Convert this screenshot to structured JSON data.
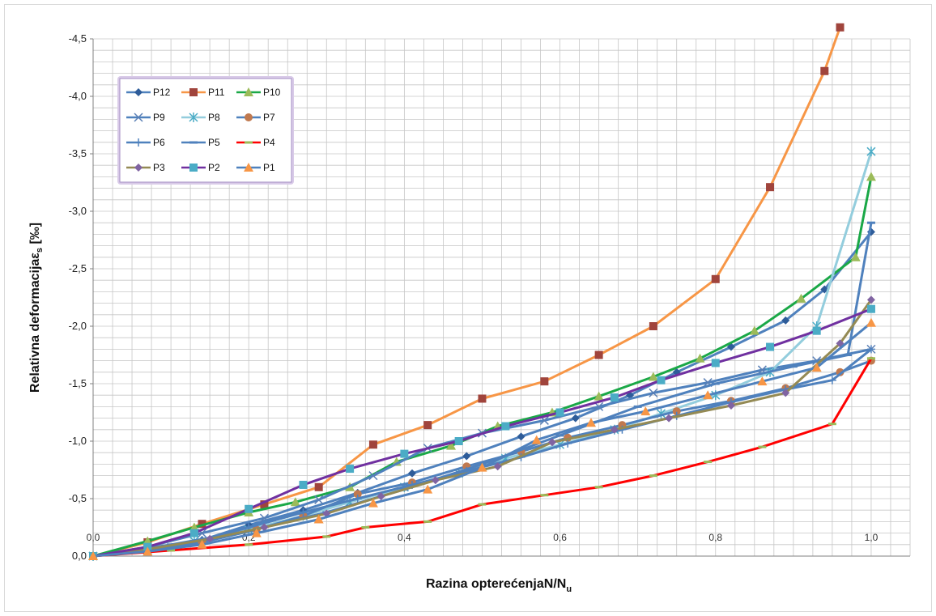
{
  "chart_data": {
    "type": "line",
    "xlabel": "Razina opterećenjaN/N",
    "xlabel_sub": "u",
    "ylabel": "Relativna deformacija",
    "ylabel_symbol": "ε",
    "ylabel_sub": "s",
    "ylabel_unit": " [‰]",
    "xlim": [
      0,
      1.05
    ],
    "ylim": [
      0,
      -4.5
    ],
    "x_ticks": [
      "0,0",
      "0,2",
      "0,4",
      "0,6",
      "0,8",
      "1,0"
    ],
    "y_ticks": [
      "0,0",
      "-0,5",
      "-1,0",
      "-1,5",
      "-2,0",
      "-2,5",
      "-3,0",
      "-3,5",
      "-4,0",
      "-4,5"
    ],
    "grid": true,
    "legend_position": "top-left",
    "series": [
      {
        "name": "P12",
        "color": "#4f81bd",
        "marker": "diamond",
        "marker_color": "#2e5c99",
        "x": [
          0,
          0.07,
          0.14,
          0.2,
          0.27,
          0.34,
          0.41,
          0.48,
          0.55,
          0.62,
          0.69,
          0.75,
          0.82,
          0.89,
          0.94,
          1.0
        ],
        "y": [
          0,
          -0.06,
          -0.14,
          -0.27,
          -0.4,
          -0.55,
          -0.72,
          -0.87,
          -1.04,
          -1.2,
          -1.4,
          -1.6,
          -1.82,
          -2.05,
          -2.32,
          -2.82
        ]
      },
      {
        "name": "P11",
        "color": "#f79646",
        "marker": "square",
        "marker_color": "#a0443c",
        "x": [
          0,
          0.07,
          0.14,
          0.22,
          0.29,
          0.36,
          0.43,
          0.5,
          0.58,
          0.65,
          0.72,
          0.8,
          0.87,
          0.94,
          0.96
        ],
        "y": [
          0,
          -0.12,
          -0.28,
          -0.45,
          -0.6,
          -0.97,
          -1.14,
          -1.37,
          -1.52,
          -1.75,
          -2.0,
          -2.41,
          -3.21,
          -4.22,
          -4.6
        ]
      },
      {
        "name": "P10",
        "color": "#1aa847",
        "marker": "triangle",
        "marker_color": "#9bbb59",
        "x": [
          0,
          0.07,
          0.13,
          0.2,
          0.26,
          0.33,
          0.39,
          0.46,
          0.52,
          0.59,
          0.65,
          0.72,
          0.78,
          0.85,
          0.91,
          0.98,
          1.0
        ],
        "y": [
          0,
          -0.13,
          -0.25,
          -0.38,
          -0.47,
          -0.6,
          -0.82,
          -0.96,
          -1.13,
          -1.25,
          -1.39,
          -1.56,
          -1.72,
          -1.96,
          -2.24,
          -2.6,
          -3.3
        ]
      },
      {
        "name": "P9",
        "color": "#4f81bd",
        "marker": "x",
        "marker_color": "#5a7fb5",
        "x": [
          0,
          0.07,
          0.14,
          0.22,
          0.29,
          0.36,
          0.43,
          0.5,
          0.58,
          0.65,
          0.72,
          0.79,
          0.86,
          0.93,
          1.0
        ],
        "y": [
          0,
          -0.08,
          -0.2,
          -0.33,
          -0.49,
          -0.7,
          -0.94,
          -1.07,
          -1.18,
          -1.3,
          -1.42,
          -1.51,
          -1.62,
          -1.7,
          -1.8
        ]
      },
      {
        "name": "P8",
        "color": "#93cddd",
        "marker": "star",
        "marker_color": "#4bacc6",
        "x": [
          0,
          0.07,
          0.13,
          0.2,
          0.27,
          0.33,
          0.4,
          0.47,
          0.53,
          0.6,
          0.67,
          0.73,
          0.8,
          0.87,
          0.93,
          1.0
        ],
        "y": [
          0,
          -0.05,
          -0.13,
          -0.23,
          -0.35,
          -0.47,
          -0.6,
          -0.72,
          -0.85,
          -0.97,
          -1.1,
          -1.24,
          -1.4,
          -1.6,
          -2.0,
          -3.52
        ]
      },
      {
        "name": "P7",
        "color": "#4f81bd",
        "marker": "circle",
        "marker_color": "#c0794f",
        "x": [
          0,
          0.07,
          0.14,
          0.21,
          0.27,
          0.34,
          0.41,
          0.48,
          0.55,
          0.61,
          0.68,
          0.75,
          0.82,
          0.89,
          0.96,
          1.0
        ],
        "y": [
          0,
          -0.05,
          -0.12,
          -0.23,
          -0.35,
          -0.54,
          -0.64,
          -0.78,
          -0.91,
          -1.03,
          -1.14,
          -1.26,
          -1.35,
          -1.46,
          -1.6,
          -1.7
        ]
      },
      {
        "name": "P6",
        "color": "#4f81bd",
        "marker": "plus",
        "marker_color": "#4f81bd",
        "x": [
          0,
          0.07,
          0.14,
          0.2,
          0.27,
          0.34,
          0.41,
          0.48,
          0.55,
          0.61,
          0.68,
          0.75,
          0.82,
          0.89,
          0.95,
          1.0
        ],
        "y": [
          0,
          -0.06,
          -0.14,
          -0.25,
          -0.38,
          -0.5,
          -0.62,
          -0.74,
          -0.86,
          -0.98,
          -1.1,
          -1.22,
          -1.34,
          -1.45,
          -1.53,
          -1.8
        ]
      },
      {
        "name": "P5",
        "color": "#4f81bd",
        "marker": "dash",
        "marker_color": "#4f81bd",
        "x": [
          0,
          0.1,
          0.2,
          0.3,
          0.4,
          0.5,
          0.6,
          0.7,
          0.8,
          0.9,
          0.97,
          1.0
        ],
        "y": [
          0,
          -0.1,
          -0.22,
          -0.38,
          -0.58,
          -0.8,
          -1.05,
          -1.3,
          -1.5,
          -1.65,
          -1.75,
          -2.9
        ]
      },
      {
        "name": "P4",
        "color": "#ff0000",
        "marker": "dash",
        "marker_color": "#9bbb59",
        "x": [
          0,
          0.1,
          0.2,
          0.3,
          0.35,
          0.43,
          0.5,
          0.58,
          0.65,
          0.72,
          0.79,
          0.86,
          0.95,
          1.0
        ],
        "y": [
          0,
          -0.05,
          -0.1,
          -0.17,
          -0.25,
          -0.3,
          -0.45,
          -0.53,
          -0.6,
          -0.7,
          -0.82,
          -0.95,
          -1.15,
          -1.72
        ]
      },
      {
        "name": "P3",
        "color": "#948a54",
        "marker": "diamond",
        "marker_color": "#8064a2",
        "x": [
          0,
          0.07,
          0.15,
          0.22,
          0.3,
          0.37,
          0.44,
          0.52,
          0.59,
          0.67,
          0.74,
          0.82,
          0.89,
          0.96,
          1.0
        ],
        "y": [
          0,
          -0.06,
          -0.15,
          -0.25,
          -0.37,
          -0.52,
          -0.66,
          -0.78,
          -0.99,
          -1.1,
          -1.2,
          -1.31,
          -1.42,
          -1.85,
          -2.23
        ]
      },
      {
        "name": "P2",
        "color": "#7030a0",
        "marker": "square",
        "marker_color": "#4bacc6",
        "x": [
          0,
          0.07,
          0.13,
          0.2,
          0.27,
          0.33,
          0.4,
          0.47,
          0.53,
          0.6,
          0.67,
          0.73,
          0.8,
          0.87,
          0.93,
          1.0
        ],
        "y": [
          0,
          -0.08,
          -0.2,
          -0.41,
          -0.62,
          -0.76,
          -0.89,
          -1.0,
          -1.13,
          -1.25,
          -1.38,
          -1.53,
          -1.68,
          -1.82,
          -1.96,
          -2.15
        ]
      },
      {
        "name": "P1",
        "color": "#4f81bd",
        "marker": "triangle",
        "marker_color": "#f79646",
        "x": [
          0,
          0.07,
          0.14,
          0.21,
          0.29,
          0.36,
          0.43,
          0.5,
          0.57,
          0.64,
          0.71,
          0.79,
          0.86,
          0.93,
          1.0
        ],
        "y": [
          0,
          -0.04,
          -0.1,
          -0.2,
          -0.32,
          -0.46,
          -0.58,
          -0.77,
          -1.01,
          -1.16,
          -1.26,
          -1.4,
          -1.52,
          -1.64,
          -2.03
        ]
      }
    ]
  }
}
